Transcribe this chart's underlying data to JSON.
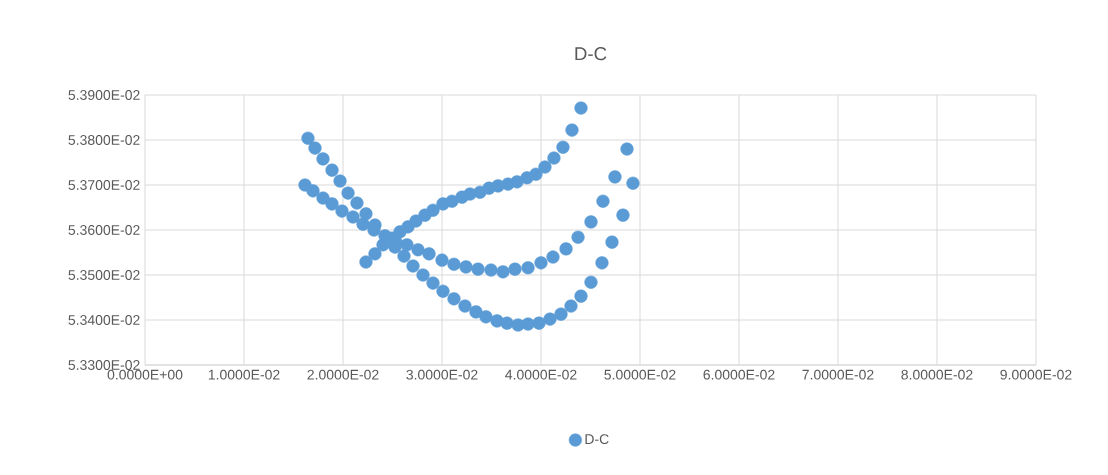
{
  "chart_data": {
    "type": "scatter",
    "title": "D-C",
    "series": [
      {
        "name": "D-C",
        "color": "#5b9bd5",
        "x": [
          0.01646,
          0.01717,
          0.01798,
          0.01889,
          0.0197,
          0.02051,
          0.02141,
          0.02232,
          0.02323,
          0.02424,
          0.02525,
          0.02616,
          0.02707,
          0.02808,
          0.02909,
          0.0301,
          0.03121,
          0.03232,
          0.03343,
          0.03444,
          0.03556,
          0.03657,
          0.03768,
          0.03869,
          0.0398,
          0.04091,
          0.04202,
          0.04303,
          0.04404,
          0.04505,
          0.04616,
          0.04717,
          0.04828,
          0.04929,
          0.01616,
          0.01697,
          0.01798,
          0.01889,
          0.0199,
          0.02101,
          0.02202,
          0.02313,
          0.02424,
          0.02535,
          0.02646,
          0.02758,
          0.02869,
          0.03,
          0.03121,
          0.03242,
          0.03364,
          0.03495,
          0.03616,
          0.03737,
          0.03869,
          0.04,
          0.04121,
          0.04253,
          0.04374,
          0.04505,
          0.04626,
          0.04747,
          0.04869,
          0.02232,
          0.02323,
          0.02404,
          0.02495,
          0.02576,
          0.02657,
          0.02737,
          0.02828,
          0.02909,
          0.0301,
          0.03101,
          0.03202,
          0.03283,
          0.03384,
          0.03475,
          0.03566,
          0.03667,
          0.03758,
          0.03859,
          0.03949,
          0.0404,
          0.04131,
          0.04222,
          0.04313,
          0.04404
        ],
        "values": [
          0.053804,
          0.053782,
          0.053758,
          0.053733,
          0.053709,
          0.053682,
          0.05366,
          0.053636,
          0.053611,
          0.053587,
          0.053562,
          0.053542,
          0.05352,
          0.0535,
          0.053482,
          0.053464,
          0.053447,
          0.053431,
          0.053418,
          0.053407,
          0.053398,
          0.053393,
          0.053389,
          0.053391,
          0.053393,
          0.053402,
          0.053413,
          0.053431,
          0.053453,
          0.053484,
          0.053527,
          0.053573,
          0.053633,
          0.053704,
          0.0537,
          0.053687,
          0.053671,
          0.053658,
          0.053642,
          0.053629,
          0.053613,
          0.0536,
          null,
          0.053573,
          0.053567,
          0.053556,
          0.053547,
          0.053533,
          0.053524,
          0.053518,
          0.053513,
          0.053511,
          0.053507,
          0.053513,
          0.053516,
          0.053527,
          0.05354,
          0.053558,
          0.053584,
          0.053618,
          0.053664,
          0.053718,
          0.05378,
          0.053529,
          0.053547,
          0.053567,
          0.053582,
          0.053596,
          0.053607,
          0.05362,
          0.053633,
          0.053644,
          0.053658,
          0.053664,
          0.053673,
          0.05368,
          0.053684,
          0.053693,
          0.053698,
          0.053702,
          0.053707,
          0.053716,
          0.053724,
          0.05374,
          0.05376,
          0.053784,
          0.053822,
          0.053871
        ]
      }
    ],
    "xlim": [
      0,
      0.09
    ],
    "ylim": [
      0.0533,
      0.0539
    ],
    "xticks": [
      {
        "value": 0,
        "label": "0.0000E+00"
      },
      {
        "value": 0.01,
        "label": "1.0000E-02"
      },
      {
        "value": 0.02,
        "label": "2.0000E-02"
      },
      {
        "value": 0.03,
        "label": "3.0000E-02"
      },
      {
        "value": 0.04,
        "label": "4.0000E-02"
      },
      {
        "value": 0.05,
        "label": "5.0000E-02"
      },
      {
        "value": 0.06,
        "label": "6.0000E-02"
      },
      {
        "value": 0.07,
        "label": "7.0000E-02"
      },
      {
        "value": 0.08,
        "label": "8.0000E-02"
      },
      {
        "value": 0.09,
        "label": "9.0000E-02"
      }
    ],
    "yticks": [
      {
        "value": 0.0533,
        "label": "5.3300E-02"
      },
      {
        "value": 0.0534,
        "label": "5.3400E-02"
      },
      {
        "value": 0.0535,
        "label": "5.3500E-02"
      },
      {
        "value": 0.0536,
        "label": "5.3600E-02"
      },
      {
        "value": 0.0537,
        "label": "5.3700E-02"
      },
      {
        "value": 0.0538,
        "label": "5.3800E-02"
      },
      {
        "value": 0.0539,
        "label": "5.3900E-02"
      }
    ],
    "grid": true,
    "legend": "bottom"
  }
}
